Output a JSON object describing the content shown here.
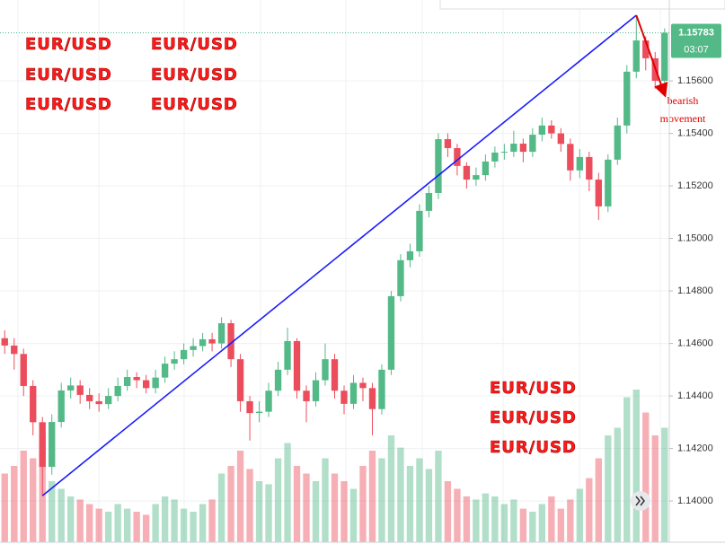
{
  "chart_data": {
    "type": "candlestick",
    "up_color": "#53b987",
    "down_color": "#eb4d5c",
    "ylim": [
      1.13843,
      1.15908
    ],
    "yticks": [
      {
        "value": 1.14,
        "label": "1.14000"
      },
      {
        "value": 1.142,
        "label": "1.14200"
      },
      {
        "value": 1.144,
        "label": "1.14400"
      },
      {
        "value": 1.146,
        "label": "1.14600"
      },
      {
        "value": 1.148,
        "label": "1.14800"
      },
      {
        "value": 1.15,
        "label": "1.15000"
      },
      {
        "value": 1.152,
        "label": "1.15200"
      },
      {
        "value": 1.154,
        "label": "1.15400"
      },
      {
        "value": 1.156,
        "label": "1.15600"
      }
    ],
    "grid": true,
    "open": [
      1.1462,
      1.14592,
      1.1456,
      1.14438,
      1.143,
      1.1413,
      1.14301,
      1.14421,
      1.1444,
      1.14404,
      1.1438,
      1.14369,
      1.144,
      1.14438,
      1.14472,
      1.1446,
      1.1443,
      1.1447,
      1.14523,
      1.1454,
      1.14575,
      1.1459,
      1.14616,
      1.146,
      1.14677,
      1.1454,
      1.1438,
      1.14335,
      1.1434,
      1.1442,
      1.145,
      1.14609,
      1.1442,
      1.1438,
      1.1446,
      1.1454,
      1.1442,
      1.1437,
      1.1445,
      1.1443,
      1.1435,
      1.145,
      1.1478,
      1.14917,
      1.14951,
      1.15105,
      1.15173,
      1.15378,
      1.15344,
      1.15276,
      1.15224,
      1.15241,
      1.15293,
      1.15327,
      1.1533,
      1.15361,
      1.1533,
      1.15395,
      1.1543,
      1.154,
      1.1536,
      1.15259,
      1.1531,
      1.15224,
      1.15122,
      1.153,
      1.1543,
      1.15635,
      1.15754,
      1.15686,
      1.156
    ],
    "high": [
      1.1465,
      1.1462,
      1.1458,
      1.1446,
      1.1432,
      1.1433,
      1.1445,
      1.1447,
      1.1446,
      1.1443,
      1.1441,
      1.1443,
      1.1447,
      1.145,
      1.1449,
      1.1448,
      1.145,
      1.1455,
      1.1457,
      1.146,
      1.1462,
      1.1464,
      1.1464,
      1.147,
      1.1469,
      1.1456,
      1.144,
      1.1438,
      1.1445,
      1.1453,
      1.1466,
      1.1462,
      1.1444,
      1.1449,
      1.146,
      1.1456,
      1.1444,
      1.1448,
      1.1447,
      1.1445,
      1.1452,
      1.148,
      1.1494,
      1.1498,
      1.1513,
      1.152,
      1.154,
      1.154,
      1.1536,
      1.1529,
      1.1527,
      1.1532,
      1.1535,
      1.1536,
      1.1541,
      1.1538,
      1.1542,
      1.1546,
      1.1545,
      1.1542,
      1.1538,
      1.1534,
      1.1533,
      1.1525,
      1.1532,
      1.1546,
      1.1566,
      1.1585,
      1.1577,
      1.1571,
      1.158
    ],
    "low": [
      1.1456,
      1.145,
      1.144,
      1.1425,
      1.1402,
      1.141,
      1.1428,
      1.1439,
      1.1437,
      1.1435,
      1.1434,
      1.1435,
      1.1438,
      1.1442,
      1.1443,
      1.1441,
      1.1441,
      1.1445,
      1.145,
      1.1452,
      1.1455,
      1.1457,
      1.1457,
      1.1458,
      1.1451,
      1.1434,
      1.1423,
      1.143,
      1.1432,
      1.144,
      1.1448,
      1.1439,
      1.143,
      1.1436,
      1.1444,
      1.1439,
      1.1433,
      1.1435,
      1.1438,
      1.1425,
      1.1433,
      1.1448,
      1.1476,
      1.1489,
      1.1493,
      1.1508,
      1.1515,
      1.1531,
      1.1524,
      1.1519,
      1.152,
      1.1522,
      1.1527,
      1.153,
      1.1531,
      1.1529,
      1.1531,
      1.1537,
      1.1538,
      1.1533,
      1.1522,
      1.1523,
      1.1518,
      1.1507,
      1.151,
      1.1528,
      1.154,
      1.1561,
      1.1564,
      1.1557,
      1.1558
    ],
    "close": [
      1.14592,
      1.1456,
      1.14438,
      1.143,
      1.1413,
      1.14301,
      1.14421,
      1.1444,
      1.14404,
      1.1438,
      1.14369,
      1.144,
      1.14438,
      1.14472,
      1.1446,
      1.1443,
      1.1447,
      1.14523,
      1.1454,
      1.14575,
      1.1459,
      1.14616,
      1.146,
      1.14677,
      1.1454,
      1.1438,
      1.14335,
      1.1434,
      1.1442,
      1.145,
      1.14609,
      1.1442,
      1.1438,
      1.1446,
      1.1454,
      1.1442,
      1.1437,
      1.1445,
      1.1443,
      1.1435,
      1.145,
      1.1478,
      1.14917,
      1.14951,
      1.15105,
      1.15173,
      1.15378,
      1.15344,
      1.15276,
      1.15224,
      1.15241,
      1.15293,
      1.15327,
      1.1533,
      1.15361,
      1.1533,
      1.15395,
      1.1543,
      1.154,
      1.1536,
      1.15259,
      1.1531,
      1.15224,
      1.15122,
      1.153,
      1.1543,
      1.15635,
      1.15754,
      1.15686,
      1.156,
      1.15783
    ],
    "volume": [
      45,
      50,
      60,
      55,
      70,
      40,
      35,
      30,
      28,
      25,
      22,
      20,
      25,
      22,
      20,
      18,
      25,
      30,
      28,
      22,
      20,
      25,
      28,
      45,
      50,
      60,
      48,
      40,
      38,
      55,
      65,
      50,
      45,
      40,
      55,
      45,
      40,
      35,
      50,
      60,
      55,
      70,
      62,
      50,
      55,
      48,
      60,
      40,
      35,
      30,
      28,
      32,
      30,
      25,
      28,
      22,
      20,
      25,
      30,
      22,
      28,
      35,
      42,
      55,
      70,
      75,
      95,
      100,
      85,
      70,
      75
    ],
    "countdown": "03:07",
    "trendline": {
      "color": "#1a1aff",
      "points": [
        [
          4,
          1.1402
        ],
        [
          67,
          1.1585
        ]
      ]
    },
    "arrow": {
      "color": "#e00000",
      "points": [
        [
          67,
          1.1585
        ],
        [
          70,
          1.15549
        ]
      ]
    },
    "annotation_lines": [
      "bearish",
      "movement"
    ],
    "watermarks": [
      "EUR/USD",
      "EUR/USD",
      "EUR/USD",
      "EUR/USD",
      "EUR/USD",
      "EUR/USD",
      "EUR/USD",
      "EUR/USD",
      "EUR/USD"
    ]
  }
}
